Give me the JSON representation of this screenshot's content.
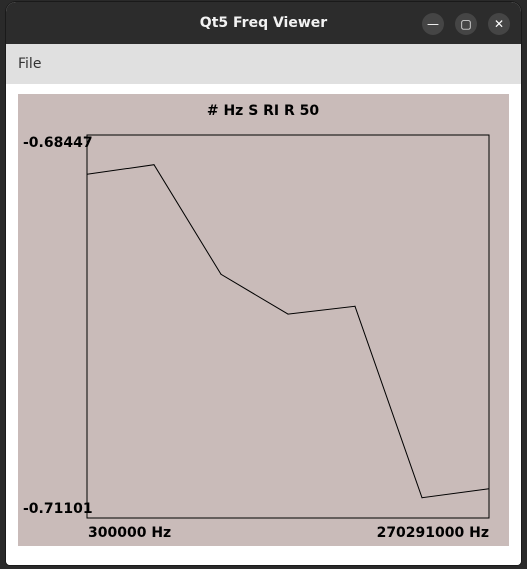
{
  "window": {
    "title": "Qt5 Freq Viewer",
    "controls": {
      "minimize": "—",
      "maximize": "▢",
      "close": "✕"
    }
  },
  "menubar": {
    "file_label": "File"
  },
  "plot": {
    "background": "#c9bbb9",
    "line_color": "#000000",
    "y_max_label": "-0.68447",
    "y_min_label": "-0.71101",
    "x_min_label": "300000 Hz",
    "x_max_label": "270291000 Hz"
  },
  "chart_data": {
    "type": "line",
    "title": "# Hz S RI R 50",
    "xlabel": "",
    "ylabel": "",
    "xlim": [
      300000,
      270291000
    ],
    "ylim": [
      -0.71101,
      -0.68447
    ],
    "x": [
      300000,
      45298500,
      90297000,
      135295500,
      180294000,
      225292500,
      270291000
    ],
    "series": [
      {
        "values": [
          -0.68719,
          -0.68653,
          -0.69412,
          -0.69688,
          -0.69634,
          -0.7096,
          -0.70899
        ]
      }
    ]
  }
}
